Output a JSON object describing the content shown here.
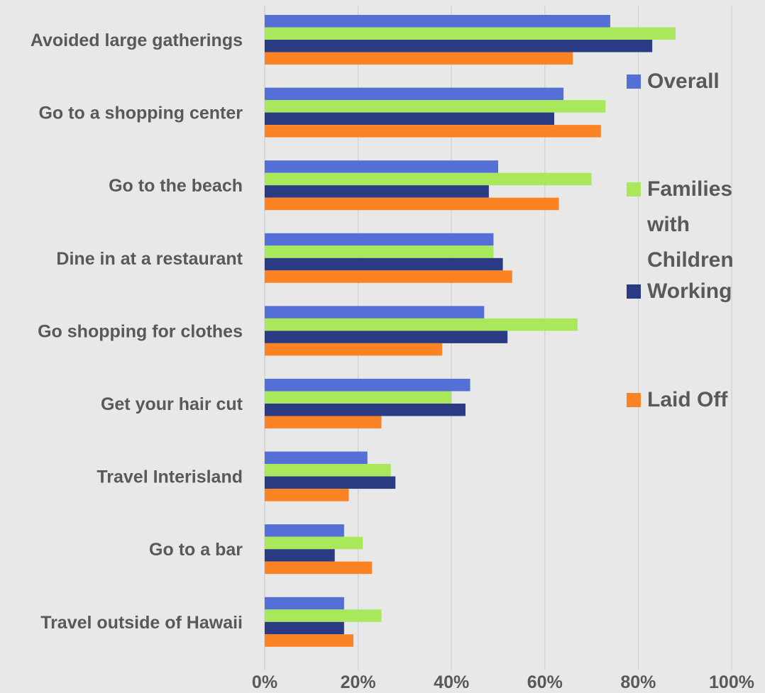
{
  "chart_data": {
    "type": "bar",
    "orientation": "horizontal",
    "categories": [
      "Avoided large gatherings",
      "Go to a shopping center",
      "Go to the beach",
      "Dine in at a restaurant",
      "Go shopping for clothes",
      "Get your hair cut",
      "Travel Interisland",
      "Go to a bar",
      "Travel outside of Hawaii"
    ],
    "series": [
      {
        "name": "Overall",
        "color": "#5470d6",
        "values": [
          74,
          64,
          50,
          49,
          47,
          44,
          22,
          17,
          17
        ]
      },
      {
        "name": "Families with Children",
        "color": "#a8e85a",
        "values": [
          88,
          73,
          70,
          49,
          67,
          40,
          27,
          21,
          25
        ]
      },
      {
        "name": "Working",
        "color": "#2a3b84",
        "values": [
          83,
          62,
          48,
          51,
          52,
          43,
          28,
          15,
          17
        ]
      },
      {
        "name": "Laid Off",
        "color": "#fc8324",
        "values": [
          66,
          72,
          63,
          53,
          38,
          25,
          18,
          23,
          19
        ]
      }
    ],
    "x_ticks": [
      "0%",
      "20%",
      "40%",
      "60%",
      "80%",
      "100%"
    ],
    "xlim": [
      0,
      100
    ],
    "grid": true,
    "legend_position": "right",
    "title": "",
    "xlabel": "",
    "ylabel": ""
  }
}
